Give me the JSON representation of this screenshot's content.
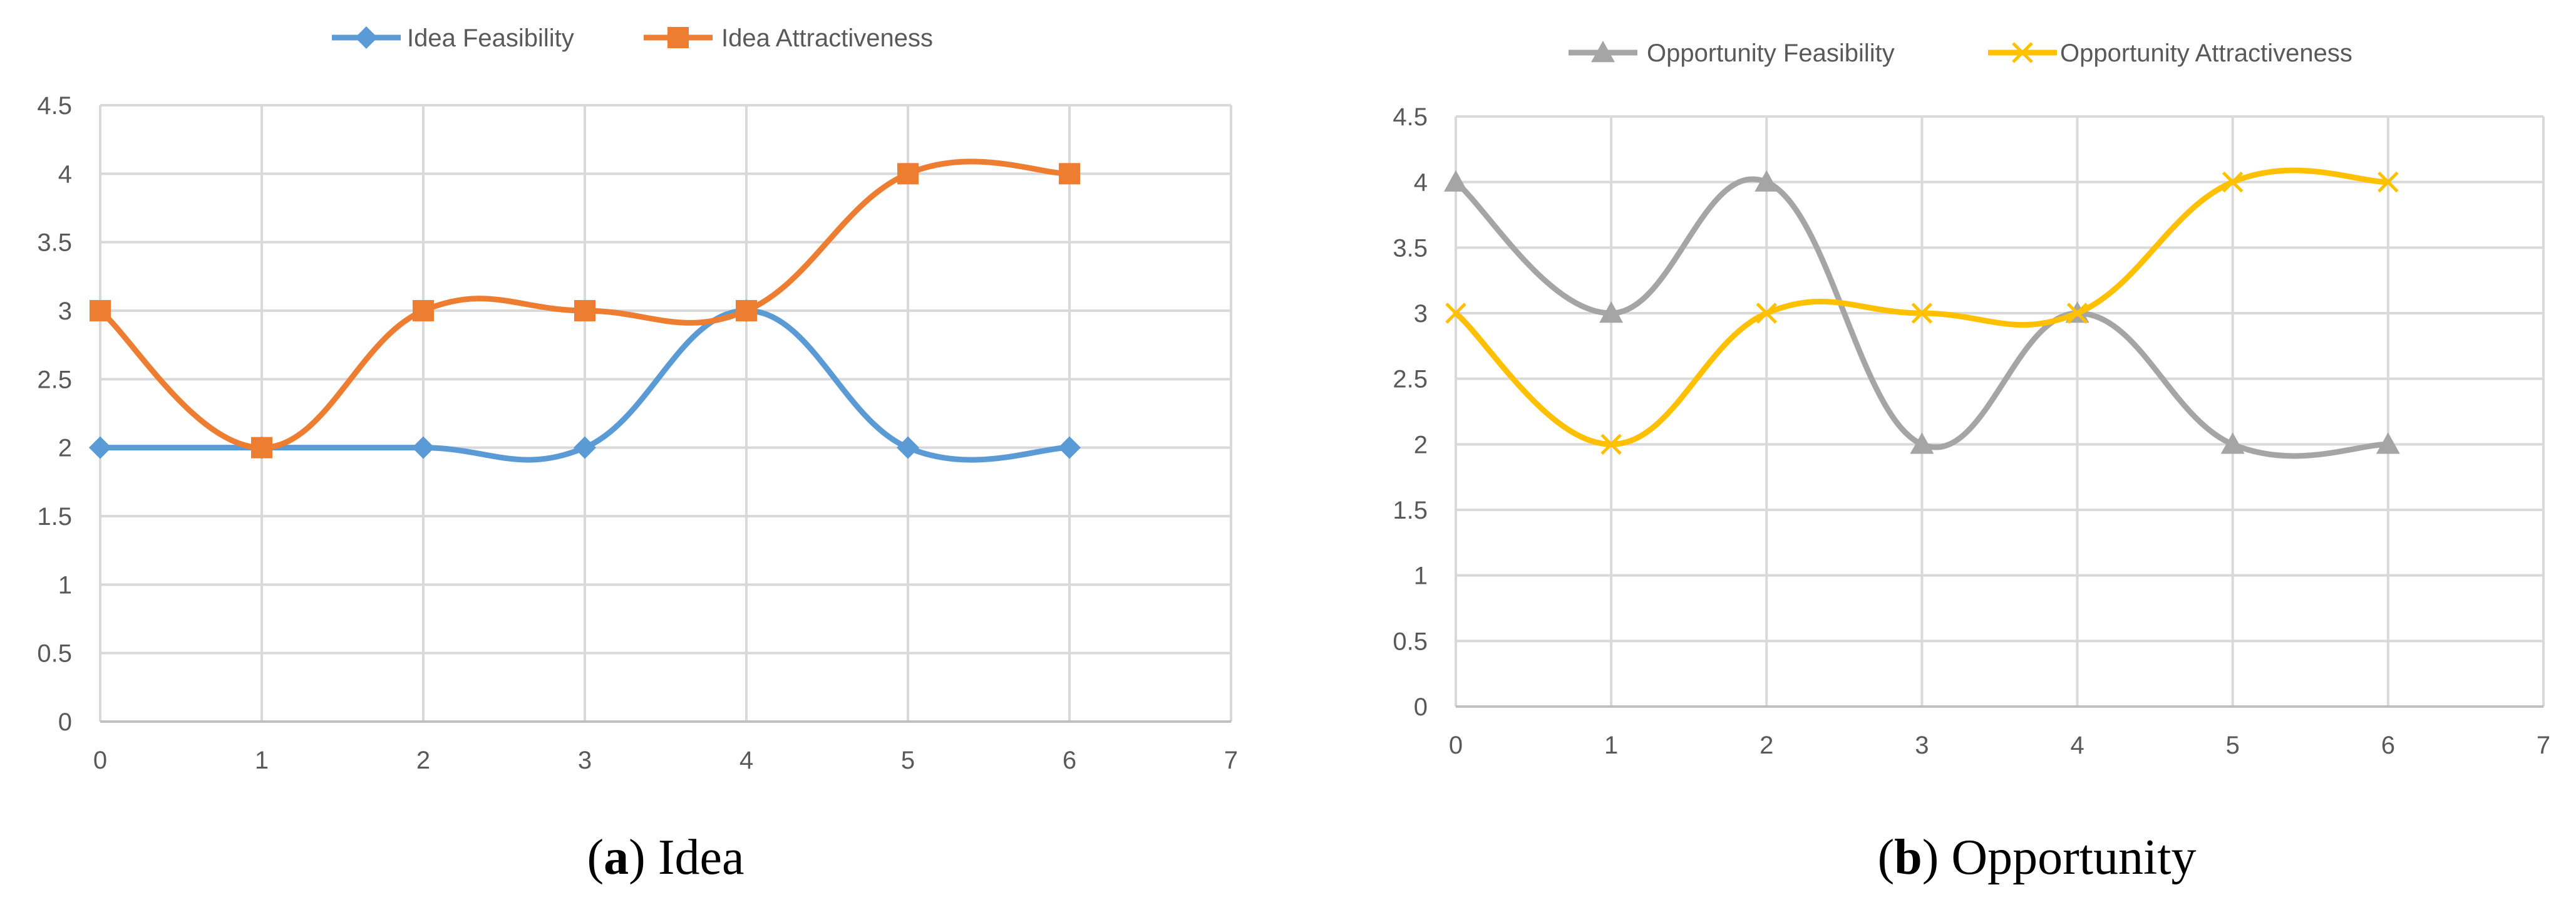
{
  "chart_data": [
    {
      "type": "line",
      "caption": {
        "prefix": "(",
        "letter": "a",
        "suffix": ") Idea"
      },
      "x": [
        0,
        1,
        2,
        3,
        4,
        5,
        6
      ],
      "xlim": [
        0,
        7
      ],
      "ylim": [
        0,
        4.5
      ],
      "xticks": [
        "0",
        "1",
        "2",
        "3",
        "4",
        "5",
        "6",
        "7"
      ],
      "yticks": [
        "0",
        "0.5",
        "1",
        "1.5",
        "2",
        "2.5",
        "3",
        "3.5",
        "4",
        "4.5"
      ],
      "grid": true,
      "legend_position": "top-center",
      "smooth": true,
      "series": [
        {
          "name": "Idea Feasibility",
          "values": [
            2,
            2,
            2,
            2,
            3,
            2,
            2
          ],
          "color": "#5B9BD5",
          "marker": "diamond"
        },
        {
          "name": "Idea Attractiveness",
          "values": [
            3,
            2,
            3,
            3,
            3,
            4,
            4
          ],
          "color": "#ED7D31",
          "marker": "square"
        }
      ]
    },
    {
      "type": "line",
      "caption": {
        "prefix": "(",
        "letter": "b",
        "suffix": ") Opportunity"
      },
      "x": [
        0,
        1,
        2,
        3,
        4,
        5,
        6
      ],
      "xlim": [
        0,
        7
      ],
      "ylim": [
        0,
        4.5
      ],
      "xticks": [
        "0",
        "1",
        "2",
        "3",
        "4",
        "5",
        "6",
        "7"
      ],
      "yticks": [
        "0",
        "0.5",
        "1",
        "1.5",
        "2",
        "2.5",
        "3",
        "3.5",
        "4",
        "4.5"
      ],
      "grid": true,
      "legend_position": "top-center",
      "smooth": true,
      "series": [
        {
          "name": "Opportunity Feasibility",
          "values": [
            4,
            3,
            4,
            2,
            3,
            2,
            2
          ],
          "color": "#A5A5A5",
          "marker": "triangle"
        },
        {
          "name": "Opportunity Attractiveness",
          "values": [
            3,
            2,
            3,
            3,
            3,
            4,
            4
          ],
          "color": "#FFC000",
          "marker": "x"
        }
      ]
    }
  ]
}
